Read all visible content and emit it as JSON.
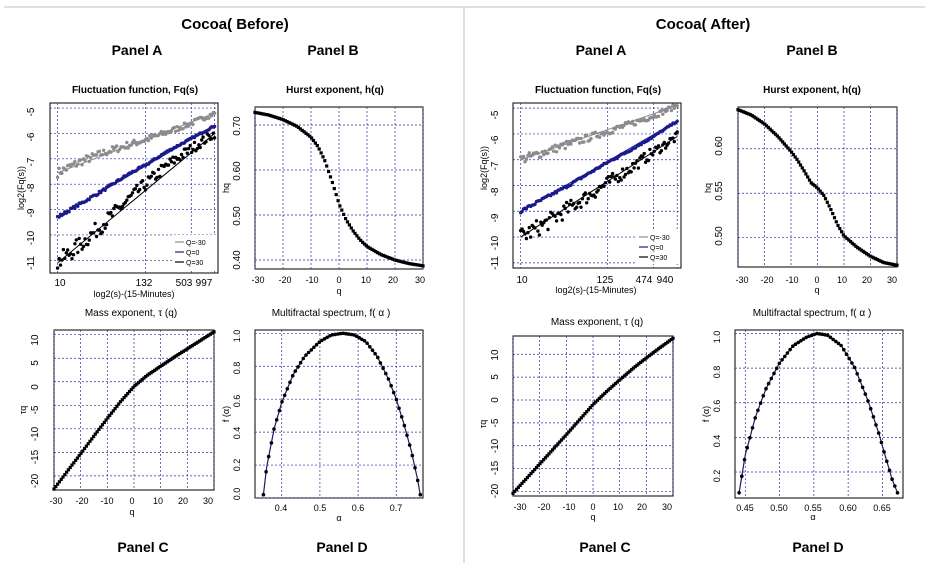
{
  "figures": [
    {
      "title": "Cocoa( Before)",
      "panel_a": {
        "label": "Panel A",
        "title": "Fluctuation function, Fq(s)",
        "xlabel": "log2(s)-(15-Minutes)",
        "ylabel": "log2(Fq(s))",
        "xticks": [
          "10",
          "132",
          "503",
          "997"
        ],
        "yticks": [
          "-5",
          "-6",
          "-7",
          "-8",
          "-9",
          "-10",
          "-11"
        ],
        "legend": [
          "Q=-30",
          "Q=0",
          "Q=30"
        ]
      },
      "panel_b": {
        "label": "Panel B",
        "title": "Hurst exponent, h(q)",
        "xlabel": "q",
        "ylabel": "hq",
        "xticks": [
          "-30",
          "-20",
          "-10",
          "0",
          "10",
          "20",
          "30"
        ],
        "yticks": [
          "0.70",
          "0.60",
          "0.50",
          "0.40"
        ]
      },
      "panel_c": {
        "label": "Panel C",
        "title": "Mass exponent, τ (q)",
        "xlabel": "q",
        "ylabel": "τq",
        "xticks": [
          "-30",
          "-20",
          "-10",
          "0",
          "10",
          "20",
          "30"
        ],
        "yticks": [
          "10",
          "5",
          "0",
          "-5",
          "-10",
          "-15",
          "-20"
        ]
      },
      "panel_d": {
        "label": "Panel D",
        "title": "Multifractal spectrum, f( α )",
        "xlabel": "α",
        "ylabel": "f (α)",
        "xticks": [
          "0.4",
          "0.5",
          "0.6",
          "0.7"
        ],
        "yticks": [
          "1.0",
          "0.8",
          "0.6",
          "0.4",
          "0.2",
          "0.0"
        ]
      }
    },
    {
      "title": "Cocoa( After)",
      "panel_a": {
        "label": "Panel A",
        "title": "Fluctuation function, Fq(s)",
        "xlabel": "log2(s)-(15-Minutes)",
        "ylabel": "log2(Fq(s))",
        "xticks": [
          "10",
          "125",
          "474",
          "940"
        ],
        "yticks": [
          "-5",
          "-6",
          "-7",
          "-8",
          "-9",
          "-10",
          "-11"
        ],
        "legend": [
          "Q=-30",
          "Q=0",
          "Q=30"
        ]
      },
      "panel_b": {
        "label": "Panel B",
        "title": "Hurst exponent, h(q)",
        "xlabel": "q",
        "ylabel": "hq",
        "xticks": [
          "-30",
          "-20",
          "-10",
          "0",
          "10",
          "20",
          "30"
        ],
        "yticks": [
          "0.60",
          "0.55",
          "0.50"
        ]
      },
      "panel_c": {
        "label": "Panel C",
        "title": "Mass exponent, τ (q)",
        "xlabel": "q",
        "ylabel": "τq",
        "xticks": [
          "-30",
          "-20",
          "-10",
          "0",
          "10",
          "20",
          "30"
        ],
        "yticks": [
          "10",
          "5",
          "0",
          "-5",
          "-10",
          "-15",
          "-20"
        ]
      },
      "panel_d": {
        "label": "Panel D",
        "title": "Multifractal spectrum, f( α )",
        "xlabel": "α",
        "ylabel": "f (α)",
        "xticks": [
          "0.45",
          "0.50",
          "0.55",
          "0.60",
          "0.65"
        ],
        "yticks": [
          "1.0",
          "0.8",
          "0.6",
          "0.4",
          "0.2"
        ]
      }
    }
  ],
  "chart_data": [
    {
      "type": "scatter",
      "figure": "Cocoa( Before)",
      "panel": "Panel A",
      "title": "Fluctuation function, Fq(s)",
      "xlabel": "log2(s)-(15-Minutes)",
      "ylabel": "log2(Fq(s))",
      "x_scale": "log2",
      "xlim": [
        8,
        1100
      ],
      "ylim": [
        -11.5,
        -4.8
      ],
      "grid": true,
      "legend_position": "bottom-right",
      "colors": {
        "Q=-30": "#8c8c8c",
        "Q=0": "#1a1a8c",
        "Q=30": "#000000"
      },
      "series": [
        {
          "name": "Q=-30",
          "x": [
            10,
            20,
            40,
            80,
            132,
            250,
            503,
            997
          ],
          "y": [
            -7.55,
            -7.1,
            -6.75,
            -6.45,
            -6.25,
            -5.95,
            -5.6,
            -5.2
          ]
        },
        {
          "name": "Q=0",
          "x": [
            10,
            20,
            40,
            80,
            132,
            250,
            503,
            997
          ],
          "y": [
            -9.3,
            -8.75,
            -8.2,
            -7.6,
            -7.25,
            -6.7,
            -6.2,
            -5.7
          ]
        },
        {
          "name": "Q=30",
          "x": [
            10,
            20,
            40,
            80,
            132,
            250,
            503,
            997
          ],
          "y": [
            -11.1,
            -10.35,
            -9.5,
            -8.6,
            -8.0,
            -7.25,
            -6.6,
            -6.0
          ]
        }
      ]
    },
    {
      "type": "scatter",
      "figure": "Cocoa( Before)",
      "panel": "Panel B",
      "title": "Hurst exponent, h(q)",
      "xlabel": "q",
      "ylabel": "hq",
      "xlim": [
        -30,
        30
      ],
      "ylim": [
        0.38,
        0.74
      ],
      "grid": true,
      "x": [
        -30,
        -25,
        -20,
        -15,
        -10,
        -7.5,
        -5,
        -2.5,
        0,
        2.5,
        5,
        7.5,
        10,
        15,
        20,
        25,
        30
      ],
      "y": [
        0.728,
        0.722,
        0.712,
        0.697,
        0.673,
        0.652,
        0.62,
        0.575,
        0.525,
        0.49,
        0.465,
        0.445,
        0.43,
        0.412,
        0.4,
        0.392,
        0.387
      ]
    },
    {
      "type": "scatter",
      "figure": "Cocoa( Before)",
      "panel": "Panel C",
      "title": "Mass exponent, τ (q)",
      "xlabel": "q",
      "ylabel": "τq",
      "xlim": [
        -30,
        30
      ],
      "ylim": [
        -23,
        11
      ],
      "grid": true,
      "x": [
        -30,
        -25,
        -20,
        -15,
        -10,
        -5,
        0,
        5,
        10,
        15,
        20,
        25,
        30
      ],
      "y": [
        -22.8,
        -19.0,
        -15.3,
        -11.5,
        -7.8,
        -4.2,
        -1.0,
        1.4,
        3.3,
        5.2,
        7.0,
        8.8,
        10.6
      ]
    },
    {
      "type": "scatter",
      "figure": "Cocoa( Before)",
      "panel": "Panel D",
      "title": "Multifractal spectrum, f( α )",
      "xlabel": "α",
      "ylabel": "f (α)",
      "xlim": [
        0.33,
        0.77
      ],
      "ylim": [
        0,
        1.02
      ],
      "grid": true,
      "fit_line": true,
      "x": [
        0.352,
        0.36,
        0.38,
        0.4,
        0.43,
        0.46,
        0.5,
        0.53,
        0.56,
        0.59,
        0.62,
        0.65,
        0.68,
        0.7,
        0.72,
        0.74,
        0.755,
        0.763
      ],
      "y": [
        0.02,
        0.18,
        0.42,
        0.58,
        0.75,
        0.86,
        0.95,
        0.99,
        1.0,
        0.99,
        0.95,
        0.86,
        0.72,
        0.6,
        0.45,
        0.28,
        0.12,
        0.02
      ]
    },
    {
      "type": "scatter",
      "figure": "Cocoa( After)",
      "panel": "Panel A",
      "title": "Fluctuation function, Fq(s)",
      "xlabel": "log2(s)-(15-Minutes)",
      "ylabel": "log2(Fq(s))",
      "x_scale": "log2",
      "xlim": [
        8,
        1050
      ],
      "ylim": [
        -11.2,
        -4.8
      ],
      "grid": true,
      "legend_position": "bottom-right",
      "colors": {
        "Q=-30": "#8c8c8c",
        "Q=0": "#1a1a8c",
        "Q=30": "#000000"
      },
      "series": [
        {
          "name": "Q=-30",
          "x": [
            10,
            20,
            40,
            80,
            125,
            250,
            474,
            940
          ],
          "y": [
            -7.0,
            -6.7,
            -6.4,
            -6.1,
            -5.9,
            -5.6,
            -5.3,
            -4.9
          ]
        },
        {
          "name": "Q=0",
          "x": [
            10,
            20,
            40,
            80,
            125,
            250,
            474,
            940
          ],
          "y": [
            -9.0,
            -8.5,
            -8.0,
            -7.45,
            -7.1,
            -6.6,
            -6.1,
            -5.5
          ]
        },
        {
          "name": "Q=30",
          "x": [
            10,
            20,
            40,
            80,
            125,
            250,
            474,
            940
          ],
          "y": [
            -10.0,
            -9.5,
            -8.9,
            -8.3,
            -7.9,
            -7.3,
            -6.7,
            -6.1
          ]
        }
      ]
    },
    {
      "type": "scatter",
      "figure": "Cocoa( After)",
      "panel": "Panel B",
      "title": "Hurst exponent, h(q)",
      "xlabel": "q",
      "ylabel": "hq",
      "xlim": [
        -30,
        30
      ],
      "ylim": [
        0.467,
        0.647
      ],
      "grid": true,
      "x": [
        -30,
        -25,
        -20,
        -15,
        -10,
        -7.5,
        -5,
        -2.5,
        0,
        2.5,
        5,
        7.5,
        10,
        15,
        20,
        25,
        30
      ],
      "y": [
        0.644,
        0.638,
        0.628,
        0.614,
        0.597,
        0.587,
        0.575,
        0.562,
        0.556,
        0.547,
        0.532,
        0.515,
        0.502,
        0.489,
        0.479,
        0.472,
        0.469
      ]
    },
    {
      "type": "scatter",
      "figure": "Cocoa( After)",
      "panel": "Panel C",
      "title": "Mass exponent, τ (q)",
      "xlabel": "q",
      "ylabel": "τq",
      "xlim": [
        -30,
        30
      ],
      "ylim": [
        -21,
        14
      ],
      "grid": true,
      "x": [
        -30,
        -25,
        -20,
        -15,
        -10,
        -5,
        0,
        5,
        10,
        15,
        20,
        25,
        30
      ],
      "y": [
        -20.4,
        -17.2,
        -14.0,
        -10.8,
        -7.6,
        -4.3,
        -1.0,
        1.8,
        4.4,
        6.9,
        9.2,
        11.4,
        13.5
      ]
    },
    {
      "type": "scatter",
      "figure": "Cocoa( After)",
      "panel": "Panel D",
      "title": "Multifractal spectrum, f( α )",
      "xlabel": "α",
      "ylabel": "f (α)",
      "xlim": [
        0.435,
        0.68
      ],
      "ylim": [
        0.05,
        1.02
      ],
      "grid": true,
      "fit_line": true,
      "x": [
        0.441,
        0.45,
        0.465,
        0.48,
        0.5,
        0.52,
        0.54,
        0.555,
        0.57,
        0.59,
        0.61,
        0.63,
        0.645,
        0.655,
        0.664,
        0.672
      ],
      "y": [
        0.08,
        0.3,
        0.52,
        0.68,
        0.83,
        0.93,
        0.98,
        1.0,
        0.99,
        0.93,
        0.8,
        0.6,
        0.42,
        0.28,
        0.16,
        0.08
      ]
    }
  ]
}
